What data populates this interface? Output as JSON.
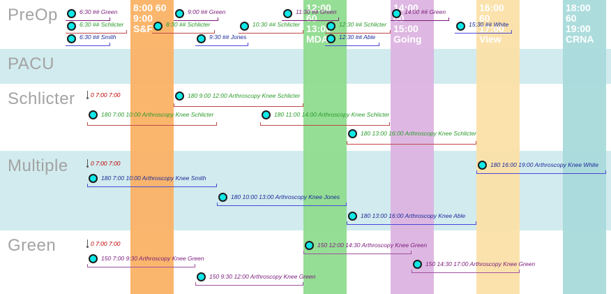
{
  "rows": [
    {
      "label": "PreOp"
    },
    {
      "label": "PACU"
    },
    {
      "label": "Schlicter"
    },
    {
      "label": "Multiple"
    },
    {
      "label": "Green"
    }
  ],
  "columns": [
    {
      "head": "8:00 60\n9:00\nS&F",
      "color": "#fbb265"
    },
    {
      "head": "12:00\n60\n13:00\nMDA",
      "color": "#8fdc8f"
    },
    {
      "head": "14:00\n60\n15:00\nGoing",
      "color": "#dcb4e0"
    },
    {
      "head": "16:00\n60\n17:00\nView",
      "color": "#fbe0a8"
    },
    {
      "head": "18:00\n60\n19:00\nCRNA",
      "color": "#a9dada"
    }
  ],
  "preop_events": [
    {
      "text": "6:30 ## Green",
      "color": "#7a1a7a"
    },
    {
      "text": "6:30 ## Schlicter",
      "color": "#2a9a2a"
    },
    {
      "text": "6:30 ## Smith",
      "color": "#1a2a9a"
    },
    {
      "text": "8:30 ## Schlicter",
      "color": "#2a9a2a"
    },
    {
      "text": "9:00 ## Green",
      "color": "#7a1a7a"
    },
    {
      "text": "9:30 ## Jones",
      "color": "#1a2a9a"
    },
    {
      "text": "10:30 ## Schlicter",
      "color": "#2a9a2a"
    },
    {
      "text": "11:30 ## Green",
      "color": "#7a1a7a"
    },
    {
      "text": "12:30 ## Schlicter",
      "color": "#2a9a2a"
    },
    {
      "text": "12:30 ## Able",
      "color": "#1a2a9a"
    },
    {
      "text": "14:00 ## Green",
      "color": "#7a1a7a"
    },
    {
      "text": "15:30 ## White",
      "color": "#1a2a9a"
    }
  ],
  "schlicter": {
    "pin": "0 7:00 7:00",
    "events": [
      {
        "text": "180 9:00 12:00 Arthroscopy Knee  Schlicter",
        "color": "#2a9a2a",
        "line": "#c04848"
      },
      {
        "text": "180 7:00 10:00 Arthroscopy Knee  Schlicter",
        "color": "#2a9a2a",
        "line": "#c04848"
      },
      {
        "text": "180 11:00 14:00 Arthroscopy Knee  Schlicter",
        "color": "#2a9a2a",
        "line": "#c04848"
      },
      {
        "text": "180 13:00 16:00 Arthroscopy Knee  Schlicter",
        "color": "#2a9a2a",
        "line": "#c04848"
      }
    ]
  },
  "multiple": {
    "pin": "0 7:00 7:00",
    "events": [
      {
        "text": "180 7:00 10:00 Arthroscopy Knee  Smith",
        "color": "#1a2a9a",
        "line": "#4848d8"
      },
      {
        "text": "180 10:00 13:00 Arthroscopy Knee  Jones",
        "color": "#1a2a9a",
        "line": "#4848d8"
      },
      {
        "text": "180 13:00 16:00 Arthroscopy Knee  Able",
        "color": "#1a2a9a",
        "line": "#4848d8"
      },
      {
        "text": "180 16:00 19:00 Arthroscopy Knee  White",
        "color": "#1a2a9a",
        "line": "#4848d8"
      }
    ]
  },
  "green": {
    "pin": "0 7:00 7:00",
    "events": [
      {
        "text": "150 12:00 14:30 Arthroscopy Knee  Green",
        "color": "#7a1a7a",
        "line": "#a050a0"
      },
      {
        "text": "150 7:00 9:30 Arthroscopy Knee  Green",
        "color": "#7a1a7a",
        "line": "#a050a0"
      },
      {
        "text": "150 14:30 17:00 Arthroscopy Knee  Green",
        "color": "#7a1a7a",
        "line": "#a050a0"
      },
      {
        "text": "150 9:30 12:00 Arthroscopy Knee  Green",
        "color": "#7a1a7a",
        "line": "#a050a0"
      }
    ]
  }
}
